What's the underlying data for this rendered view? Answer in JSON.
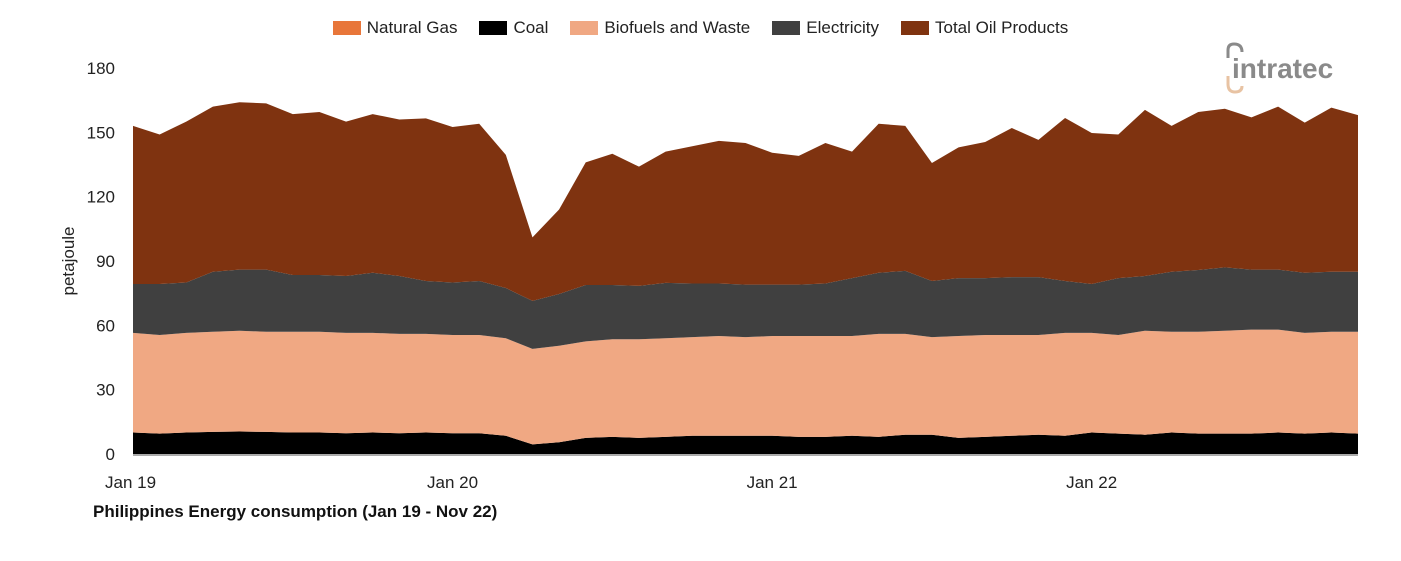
{
  "chart_data": {
    "type": "area",
    "stacked": true,
    "title": "Philippines Energy consumption (Jan 19 - Nov 22)",
    "ylabel": "petajoule",
    "xlabel": "",
    "ylim": [
      0,
      180
    ],
    "yticks": [
      0,
      30,
      60,
      90,
      120,
      150,
      180
    ],
    "xticks": [
      "Jan 19",
      "Jan 20",
      "Jan 21",
      "Jan 22"
    ],
    "x": [
      "Jan 19",
      "Feb 19",
      "Mar 19",
      "Apr 19",
      "May 19",
      "Jun 19",
      "Jul 19",
      "Aug 19",
      "Sep 19",
      "Oct 19",
      "Nov 19",
      "Dec 19",
      "Jan 20",
      "Feb 20",
      "Mar 20",
      "Apr 20",
      "May 20",
      "Jun 20",
      "Jul 20",
      "Aug 20",
      "Sep 20",
      "Oct 20",
      "Nov 20",
      "Dec 20",
      "Jan 21",
      "Feb 21",
      "Mar 21",
      "Apr 21",
      "May 21",
      "Jun 21",
      "Jul 21",
      "Aug 21",
      "Sep 21",
      "Oct 21",
      "Nov 21",
      "Dec 21",
      "Jan 22",
      "Feb 22",
      "Mar 22",
      "Apr 22",
      "May 22",
      "Jun 22",
      "Jul 22",
      "Aug 22",
      "Sep 22",
      "Oct 22",
      "Nov 22"
    ],
    "legend_position": "top",
    "grid": false,
    "series": [
      {
        "name": "Natural Gas",
        "color": "#E8763A",
        "values": [
          0,
          0,
          0,
          0,
          0,
          0,
          0,
          0,
          0,
          0,
          0,
          0,
          0,
          0,
          0,
          0,
          0,
          0,
          0,
          0,
          0,
          0,
          0,
          0,
          0,
          0,
          0,
          0,
          0,
          0,
          0,
          0,
          0,
          0,
          0,
          0,
          0,
          0,
          0,
          0,
          0,
          0,
          0,
          0,
          0,
          0,
          0
        ]
      },
      {
        "name": "Coal",
        "color": "#000000",
        "values": [
          10,
          9.5,
          10,
          10.3,
          10.5,
          10.3,
          10,
          10,
          9.7,
          10,
          9.7,
          10,
          9.7,
          9.7,
          8.5,
          4.5,
          5.5,
          7.5,
          8,
          7.5,
          8,
          8.5,
          8.5,
          8.5,
          8.5,
          8,
          8,
          8.5,
          8,
          9,
          9,
          7.5,
          8,
          8.5,
          9,
          8.5,
          10,
          9.5,
          9,
          10,
          9.5,
          9.5,
          9.5,
          10,
          9.5,
          10,
          9.5
        ]
      },
      {
        "name": "Biofuels and Waste",
        "color": "#F0A883",
        "values": [
          46.5,
          46,
          46.5,
          46.7,
          47,
          46.7,
          47,
          47,
          46.8,
          46.5,
          46.3,
          46,
          45.8,
          45.8,
          45.5,
          44.5,
          45,
          45,
          45.5,
          46,
          46,
          46,
          46.5,
          46,
          46.5,
          47,
          47,
          46.5,
          48,
          47,
          45.5,
          47.5,
          47.5,
          47,
          46.5,
          48,
          46.5,
          46,
          48.5,
          47,
          47.5,
          48,
          48.5,
          48,
          47,
          47,
          47.5
        ]
      },
      {
        "name": "Electricity",
        "color": "#404040",
        "values": [
          22.8,
          23.8,
          23.5,
          28,
          28.5,
          29,
          26.5,
          26.5,
          26.5,
          28,
          27,
          24.7,
          24.5,
          25.2,
          23.4,
          22.4,
          24.1,
          26.3,
          25.3,
          24.9,
          25.8,
          25,
          24.5,
          24.5,
          24,
          24,
          24.5,
          27,
          28.5,
          29.4,
          26.2,
          27,
          26.5,
          27,
          27,
          24.2,
          22.8,
          26.5,
          25.5,
          28,
          28.8,
          29.5,
          28,
          28,
          28,
          28,
          28
        ]
      },
      {
        "name": "Total Oil Products",
        "color": "#7F3310",
        "values": [
          73.7,
          69.7,
          75,
          77,
          78,
          77.5,
          75,
          76,
          72,
          74,
          73,
          75.8,
          72.5,
          73.3,
          62.1,
          29.6,
          39.4,
          57.2,
          61.2,
          55.6,
          61.2,
          64,
          66.5,
          66,
          61.5,
          60,
          65.5,
          59,
          69.5,
          67.6,
          55,
          61,
          63.5,
          69.5,
          64,
          76,
          70.4,
          67,
          77.5,
          68,
          73.7,
          74,
          71,
          76,
          70,
          76.5,
          73
        ]
      }
    ]
  },
  "logo": {
    "text": "intratec"
  }
}
